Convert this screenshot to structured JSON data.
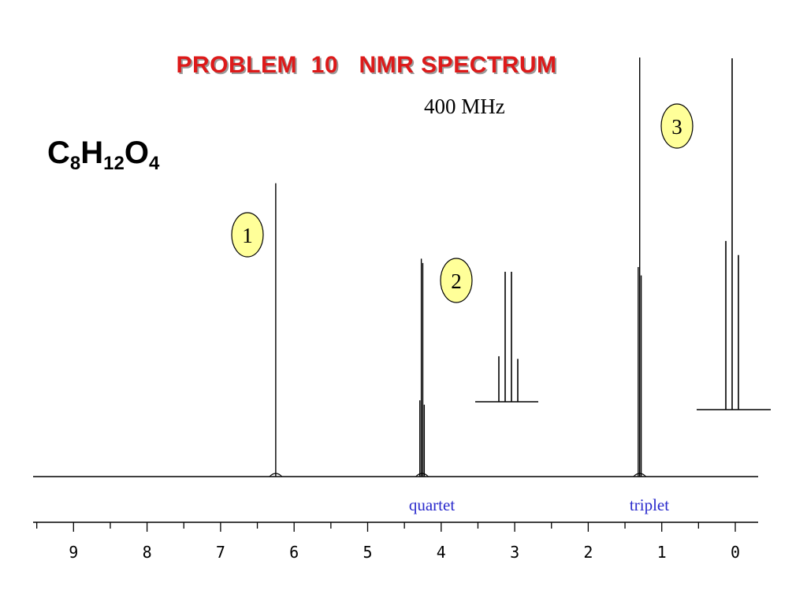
{
  "title": "PROBLEM  10   NMR SPECTRUM",
  "colors": {
    "title": "#dd1a1a",
    "title_shadow": "#9a9a9a",
    "annotation": "#2a2acc",
    "spectrum": "#000000",
    "peak_badge_fill": "#ffff99"
  },
  "frequency_label": "400 MHz",
  "formula": {
    "parts": [
      {
        "el": "C",
        "n": "8"
      },
      {
        "el": "H",
        "n": "12"
      },
      {
        "el": "O",
        "n": "4"
      }
    ]
  },
  "chart_data": {
    "type": "line",
    "title": "",
    "xlabel": "",
    "ylabel": "",
    "x_axis_reversed": true,
    "xlim": [
      9.5,
      -0.3
    ],
    "ticks": [
      "9",
      "8",
      "7",
      "6",
      "5",
      "4",
      "3",
      "2",
      "1",
      "0"
    ],
    "minor_tick_step": 0.5,
    "peaks": [
      {
        "label": "1",
        "shift": 6.25,
        "multiplicity": "",
        "relative_height": 0.7,
        "lines": [
          {
            "shift": 6.25,
            "height": 1.0
          }
        ]
      },
      {
        "label": "2",
        "shift": 4.26,
        "multiplicity": "quartet",
        "relative_height": 0.52,
        "lines": [
          {
            "shift": 4.29,
            "height": 0.35
          },
          {
            "shift": 4.27,
            "height": 1.0
          },
          {
            "shift": 4.25,
            "height": 0.98
          },
          {
            "shift": 4.23,
            "height": 0.33
          }
        ]
      },
      {
        "label": "3",
        "shift": 1.3,
        "multiplicity": "triplet",
        "relative_height": 1.0,
        "lines": [
          {
            "shift": 1.32,
            "height": 0.5
          },
          {
            "shift": 1.3,
            "height": 1.0
          },
          {
            "shift": 1.28,
            "height": 0.48
          }
        ]
      }
    ],
    "expansions": [
      {
        "of_peak": "2",
        "lines": [
          {
            "offset": -3,
            "height": 0.35
          },
          {
            "offset": -1,
            "height": 1.0
          },
          {
            "offset": 1,
            "height": 1.0
          },
          {
            "offset": 3,
            "height": 0.33
          }
        ]
      },
      {
        "of_peak": "3",
        "lines": [
          {
            "offset": -1,
            "height": 0.48
          },
          {
            "offset": 0,
            "height": 1.0
          },
          {
            "offset": 1,
            "height": 0.44
          }
        ]
      }
    ]
  }
}
